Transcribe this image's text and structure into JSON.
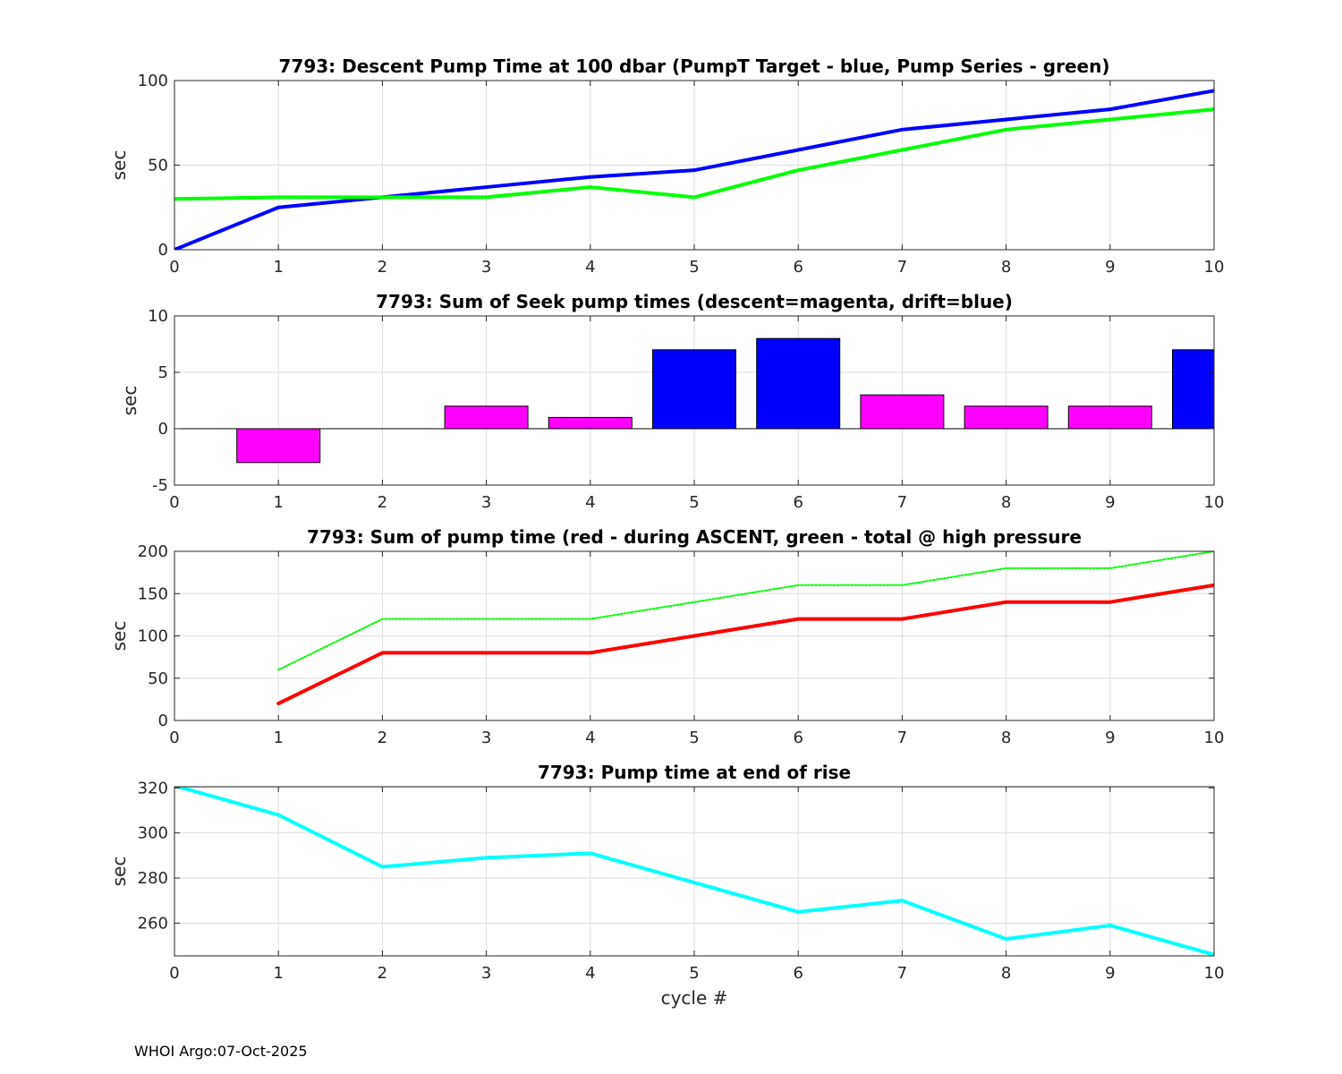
{
  "chart_data": [
    {
      "type": "line",
      "title": "7793: Descent Pump Time at 100 dbar (PumpT Target - blue, Pump Series - green)",
      "xlabel": "",
      "ylabel": "sec",
      "xlim": [
        0,
        10
      ],
      "ylim": [
        0,
        100
      ],
      "xticks": [
        0,
        1,
        2,
        3,
        4,
        5,
        6,
        7,
        8,
        9,
        10
      ],
      "yticks": [
        0,
        50,
        100
      ],
      "grid": true,
      "series": [
        {
          "name": "PumpT Target",
          "color": "#0000ff",
          "style": "solid",
          "x": [
            0,
            1,
            2,
            3,
            4,
            5,
            6,
            7,
            8,
            9,
            10
          ],
          "y": [
            0,
            25,
            31,
            37,
            43,
            47,
            59,
            71,
            77,
            83,
            94
          ]
        },
        {
          "name": "Pump Series",
          "color": "#00ff00",
          "style": "solid",
          "x": [
            0,
            1,
            2,
            3,
            4,
            5,
            6,
            7,
            8,
            9,
            10
          ],
          "y": [
            30,
            31,
            31,
            31,
            37,
            31,
            47,
            59,
            71,
            77,
            83
          ]
        }
      ]
    },
    {
      "type": "bar",
      "title": "7793: Sum of Seek pump times (descent=magenta, drift=blue)",
      "xlabel": "",
      "ylabel": "sec",
      "xlim": [
        0,
        10
      ],
      "ylim": [
        -5,
        10
      ],
      "xticks": [
        0,
        1,
        2,
        3,
        4,
        5,
        6,
        7,
        8,
        9,
        10
      ],
      "yticks": [
        -5,
        0,
        5,
        10
      ],
      "grid": true,
      "bars": [
        {
          "x": 1,
          "value": -3,
          "color": "#ff00ff"
        },
        {
          "x": 3,
          "value": 2,
          "color": "#ff00ff"
        },
        {
          "x": 4,
          "value": 1,
          "color": "#ff00ff"
        },
        {
          "x": 5,
          "value": 7,
          "color": "#0000ff"
        },
        {
          "x": 6,
          "value": 8,
          "color": "#0000ff"
        },
        {
          "x": 7,
          "value": 3,
          "color": "#ff00ff"
        },
        {
          "x": 8,
          "value": 2,
          "color": "#ff00ff"
        },
        {
          "x": 9,
          "value": 2,
          "color": "#ff00ff"
        },
        {
          "x": 10,
          "value": 7,
          "color": "#0000ff"
        }
      ]
    },
    {
      "type": "line",
      "title": "7793: Sum of pump time (red - during ASCENT, green - total @ high pressure",
      "xlabel": "",
      "ylabel": "sec",
      "xlim": [
        0,
        10
      ],
      "ylim": [
        0,
        200
      ],
      "xticks": [
        0,
        1,
        2,
        3,
        4,
        5,
        6,
        7,
        8,
        9,
        10
      ],
      "yticks": [
        0,
        50,
        100,
        150,
        200
      ],
      "grid": true,
      "series": [
        {
          "name": "during ASCENT",
          "color": "#ff0000",
          "style": "solid",
          "x": [
            1,
            2,
            3,
            4,
            5,
            6,
            7,
            8,
            9,
            10
          ],
          "y": [
            20,
            80,
            80,
            80,
            100,
            120,
            120,
            140,
            140,
            160
          ]
        },
        {
          "name": "total @ high pressure",
          "color": "#00ff00",
          "style": "dotted",
          "x": [
            1,
            2,
            3,
            4,
            5,
            6,
            7,
            8,
            9,
            10
          ],
          "y": [
            60,
            120,
            120,
            120,
            140,
            160,
            160,
            180,
            180,
            200
          ]
        }
      ]
    },
    {
      "type": "line",
      "title": "7793: Pump time at end of rise",
      "xlabel": "cycle #",
      "ylabel": "sec",
      "xlim": [
        0,
        10
      ],
      "ylim": [
        245.5,
        320.5
      ],
      "xticks": [
        0,
        1,
        2,
        3,
        4,
        5,
        6,
        7,
        8,
        9,
        10
      ],
      "yticks": [
        260,
        280,
        300,
        320
      ],
      "grid": true,
      "series": [
        {
          "name": "end of rise",
          "color": "#00ffff",
          "style": "solid",
          "x": [
            0,
            1,
            2,
            3,
            4,
            5,
            6,
            7,
            8,
            9,
            10
          ],
          "y": [
            321,
            308,
            285,
            289,
            291,
            278,
            265,
            270,
            253,
            259,
            246
          ]
        }
      ]
    }
  ],
  "footer": "WHOI Argo:07-Oct-2025"
}
